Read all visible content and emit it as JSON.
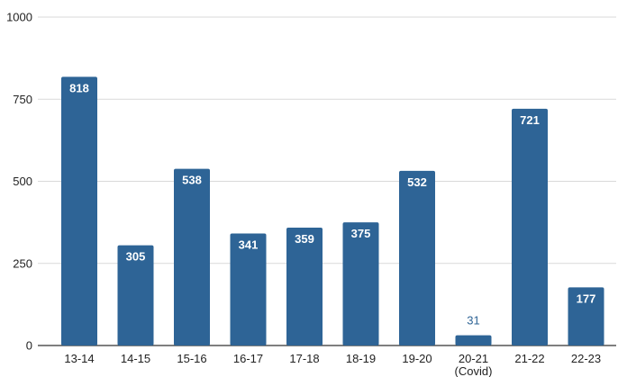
{
  "chart_data": {
    "type": "bar",
    "categories": [
      "13-14",
      "14-15",
      "15-16",
      "16-17",
      "17-18",
      "18-19",
      "19-20",
      "20-21",
      "21-22",
      "22-23"
    ],
    "category_sublabels": [
      "",
      "",
      "",
      "",
      "",
      "",
      "",
      "(Covid)",
      "",
      ""
    ],
    "values": [
      818,
      305,
      538,
      341,
      359,
      375,
      532,
      31,
      721,
      177
    ],
    "data_labels": [
      "818",
      "305",
      "538",
      "341",
      "359",
      "375",
      "532",
      "31",
      "721",
      "177"
    ],
    "ylim": [
      0,
      1000
    ],
    "yticks": [
      0,
      250,
      500,
      750,
      1000
    ],
    "ytick_labels": [
      "0",
      "250",
      "500",
      "750",
      "1000"
    ],
    "grid": true,
    "legend": "none",
    "colors": {
      "bar": "#2e6496",
      "data_label_inside": "#ffffff",
      "data_label_outside": "#2e6496",
      "grid": "#d9d9d9",
      "axis": "#333333"
    }
  }
}
